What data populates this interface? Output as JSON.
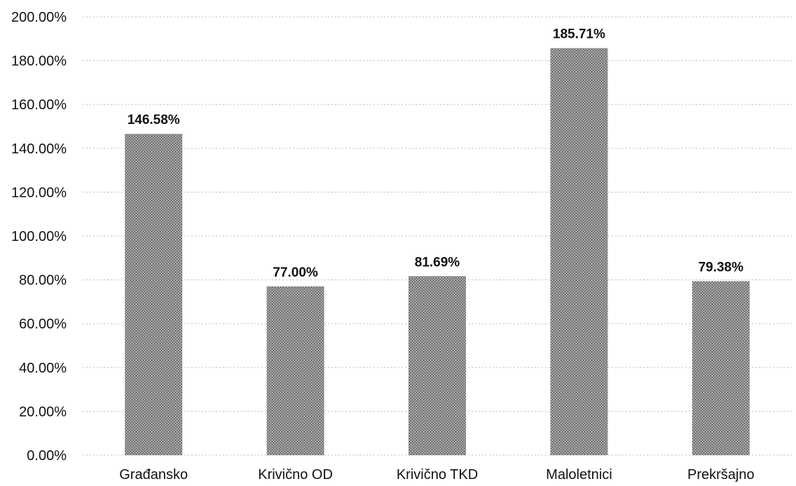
{
  "chart_data": {
    "type": "bar",
    "categories": [
      "Građansko",
      "Krivično OD",
      "Krivično TKD",
      "Maloletnici",
      "Prekršajno"
    ],
    "values": [
      146.58,
      77.0,
      81.69,
      185.71,
      79.38
    ],
    "data_labels": [
      "146.58%",
      "77.00%",
      "81.69%",
      "185.71%",
      "79.38%"
    ],
    "yticks": [
      "0.00%",
      "20.00%",
      "40.00%",
      "60.00%",
      "80.00%",
      "100.00%",
      "120.00%",
      "140.00%",
      "160.00%",
      "180.00%",
      "200.00%"
    ],
    "ylim": [
      0,
      200
    ],
    "ytick_step": 20,
    "grid": true,
    "legend": "none",
    "bar_color": "#9a9a9a",
    "title": "",
    "xlabel": "",
    "ylabel": ""
  }
}
